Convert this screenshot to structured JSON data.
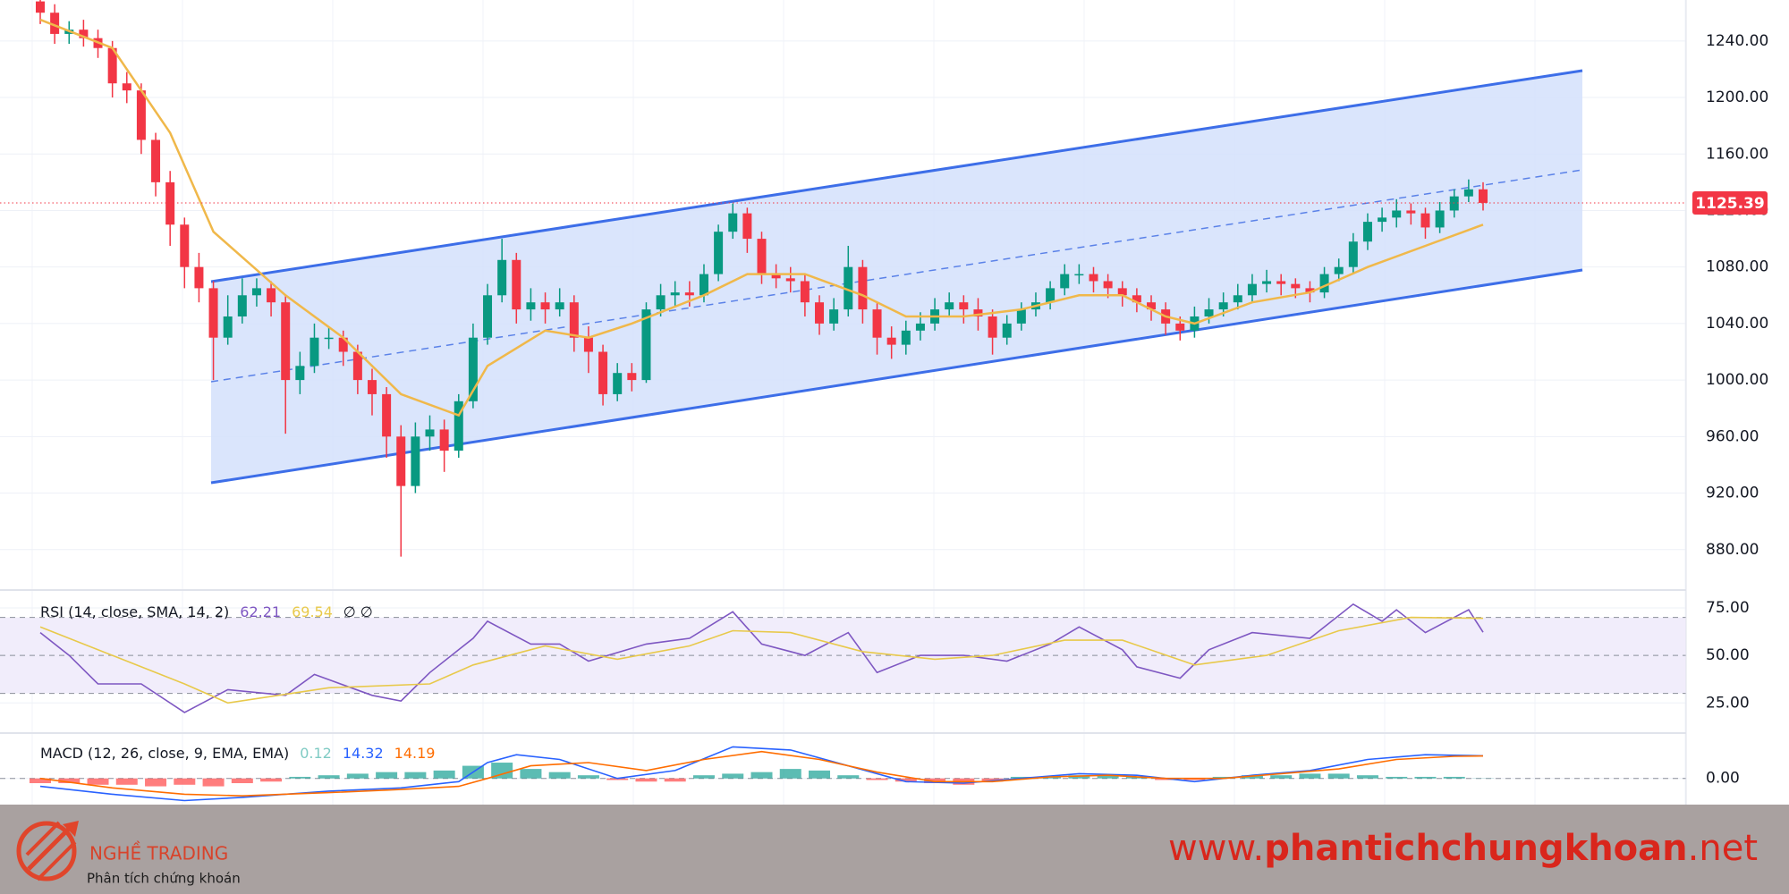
{
  "chart_data": [
    {
      "type": "candlestick",
      "open": [
        1268,
        1260,
        1245,
        1248,
        1242,
        1235,
        1210,
        1205,
        1170,
        1140,
        1110,
        1080,
        1065,
        1030,
        1045,
        1060,
        1065,
        1055,
        1000,
        1010,
        1030,
        1030,
        1020,
        1000,
        990,
        960,
        925,
        960,
        965,
        950,
        985,
        1030,
        1060,
        1085,
        1050,
        1055,
        1050,
        1055,
        1030,
        1020,
        990,
        1005,
        1000,
        1050,
        1060,
        1062,
        1060,
        1075,
        1105,
        1118,
        1100,
        1075,
        1072,
        1070,
        1055,
        1040,
        1050,
        1080,
        1050,
        1030,
        1025,
        1035,
        1040,
        1050,
        1055,
        1050,
        1045,
        1030,
        1040,
        1050,
        1055,
        1065,
        1075,
        1075,
        1070,
        1065,
        1060,
        1055,
        1050,
        1040,
        1035,
        1045,
        1050,
        1055,
        1060,
        1068,
        1070,
        1068,
        1065,
        1062,
        1075,
        1080,
        1098,
        1112,
        1115,
        1120,
        1118,
        1108,
        1120,
        1130,
        1135
      ],
      "high": [
        1272,
        1266,
        1254,
        1255,
        1248,
        1240,
        1218,
        1210,
        1175,
        1148,
        1115,
        1090,
        1070,
        1060,
        1072,
        1072,
        1070,
        1060,
        1020,
        1040,
        1038,
        1035,
        1025,
        1008,
        995,
        968,
        970,
        975,
        972,
        990,
        1040,
        1068,
        1100,
        1090,
        1065,
        1062,
        1065,
        1060,
        1038,
        1025,
        1012,
        1012,
        1055,
        1068,
        1070,
        1070,
        1082,
        1110,
        1125,
        1122,
        1105,
        1082,
        1080,
        1075,
        1060,
        1058,
        1095,
        1085,
        1055,
        1038,
        1042,
        1048,
        1058,
        1062,
        1060,
        1058,
        1050,
        1046,
        1055,
        1062,
        1070,
        1082,
        1082,
        1080,
        1075,
        1070,
        1065,
        1060,
        1055,
        1045,
        1052,
        1058,
        1062,
        1068,
        1075,
        1078,
        1075,
        1072,
        1070,
        1080,
        1086,
        1104,
        1118,
        1122,
        1128,
        1125,
        1122,
        1126,
        1135,
        1142,
        1140
      ],
      "low": [
        1252,
        1238,
        1238,
        1236,
        1228,
        1200,
        1196,
        1160,
        1130,
        1095,
        1065,
        1055,
        1000,
        1025,
        1040,
        1052,
        1045,
        962,
        990,
        1005,
        1022,
        1010,
        990,
        975,
        945,
        875,
        920,
        950,
        935,
        945,
        980,
        1025,
        1055,
        1040,
        1042,
        1040,
        1045,
        1020,
        1005,
        982,
        985,
        992,
        998,
        1045,
        1052,
        1052,
        1055,
        1070,
        1100,
        1090,
        1068,
        1065,
        1062,
        1045,
        1032,
        1035,
        1045,
        1040,
        1018,
        1015,
        1018,
        1028,
        1035,
        1045,
        1040,
        1035,
        1018,
        1025,
        1035,
        1045,
        1050,
        1060,
        1068,
        1062,
        1058,
        1052,
        1048,
        1042,
        1032,
        1028,
        1030,
        1040,
        1045,
        1050,
        1055,
        1062,
        1060,
        1058,
        1055,
        1058,
        1070,
        1075,
        1092,
        1105,
        1108,
        1110,
        1100,
        1104,
        1115,
        1126,
        1120
      ],
      "close": [
        1260,
        1245,
        1248,
        1242,
        1235,
        1210,
        1205,
        1170,
        1140,
        1110,
        1080,
        1065,
        1030,
        1045,
        1060,
        1065,
        1055,
        1000,
        1010,
        1030,
        1030,
        1020,
        1000,
        990,
        960,
        925,
        960,
        965,
        950,
        985,
        1030,
        1060,
        1085,
        1050,
        1055,
        1050,
        1055,
        1030,
        1020,
        990,
        1005,
        1000,
        1050,
        1060,
        1062,
        1060,
        1075,
        1105,
        1118,
        1100,
        1075,
        1072,
        1070,
        1055,
        1040,
        1050,
        1080,
        1050,
        1030,
        1025,
        1035,
        1040,
        1050,
        1055,
        1050,
        1045,
        1030,
        1040,
        1050,
        1055,
        1065,
        1075,
        1075,
        1070,
        1065,
        1060,
        1055,
        1050,
        1040,
        1035,
        1045,
        1050,
        1055,
        1060,
        1068,
        1070,
        1068,
        1065,
        1062,
        1075,
        1080,
        1098,
        1112,
        1115,
        1120,
        1118,
        1108,
        1120,
        1130,
        1135,
        1125.39
      ],
      "up_color": "#089981",
      "down_color": "#f23645",
      "ma": {
        "color": "#f0b84a",
        "x": [
          0,
          5,
          9,
          12,
          17,
          21,
          25,
          29,
          31,
          35,
          38,
          41,
          46,
          49,
          53,
          57,
          60,
          64,
          68,
          72,
          75,
          78,
          80,
          84,
          88,
          92,
          96,
          100
        ],
        "values": [
          1255,
          1235,
          1175,
          1105,
          1060,
          1030,
          990,
          975,
          1010,
          1035,
          1030,
          1040,
          1060,
          1075,
          1075,
          1060,
          1045,
          1045,
          1050,
          1060,
          1060,
          1045,
          1040,
          1055,
          1062,
          1080,
          1095,
          1110
        ]
      },
      "last_price_color": "#f23645",
      "ylim": [
        852,
        1269
      ],
      "yticks": [
        {
          "value": 880,
          "label": "880.00"
        },
        {
          "value": 920,
          "label": "920.00"
        },
        {
          "value": 960,
          "label": "960.00"
        },
        {
          "value": 1000,
          "label": "1000.00"
        },
        {
          "value": 1040,
          "label": "1040.00"
        },
        {
          "value": 1080,
          "label": "1080.00"
        },
        {
          "value": 1120,
          "label": "1120.00"
        },
        {
          "value": 1160,
          "label": "1160.00"
        },
        {
          "value": 1200,
          "label": "1200.00"
        },
        {
          "value": 1240,
          "label": "1240.00"
        }
      ],
      "grid": true
    },
    {
      "type": "line",
      "title": "RSI (14, close, SMA, 14, 2)",
      "extra_label": "∅ ∅",
      "series": [
        {
          "color": "#7e57c2",
          "x": [
            0,
            2,
            4,
            7,
            10,
            13,
            17,
            19,
            23,
            25,
            27,
            30,
            31,
            34,
            36,
            38,
            42,
            45,
            48,
            50,
            53,
            56,
            58,
            61,
            64,
            67,
            70,
            72,
            75,
            76,
            79,
            81,
            84,
            88,
            91,
            93,
            94,
            96,
            99,
            100
          ],
          "values": [
            62,
            50,
            35,
            35,
            20,
            32,
            29,
            40,
            29,
            26,
            41,
            59,
            68,
            56,
            56,
            47,
            56,
            59,
            73,
            56,
            50,
            62,
            41,
            50,
            50,
            47,
            56,
            65,
            53,
            44,
            38,
            53,
            62,
            59,
            77,
            68,
            74,
            62,
            74,
            62.21
          ]
        },
        {
          "color": "#e8c94a",
          "x": [
            0,
            5,
            10,
            13,
            20,
            27,
            30,
            35,
            40,
            45,
            48,
            52,
            57,
            62,
            66,
            71,
            75,
            80,
            85,
            90,
            95,
            100
          ],
          "values": [
            65,
            50,
            35,
            25,
            33,
            35,
            45,
            55,
            48,
            55,
            63,
            62,
            52,
            48,
            50,
            58,
            58,
            45,
            50,
            63,
            70,
            69.54
          ]
        }
      ],
      "band_lines": [
        30,
        50,
        70
      ],
      "band_color": "#f1edfb",
      "ylim": [
        11,
        83
      ],
      "yticks": [
        {
          "value": 25,
          "label": "25.00"
        },
        {
          "value": 50,
          "label": "50.00"
        },
        {
          "value": 75,
          "label": "75.00"
        }
      ]
    },
    {
      "type": "macd",
      "title": "MACD (12, 26, close, 9, EMA, EMA)",
      "histogram": {
        "positive_color": "#26a69a",
        "negative_color": "#ff5252",
        "label_color": "#80cbc4",
        "x": [
          0,
          2,
          4,
          6,
          8,
          10,
          12,
          14,
          16,
          18,
          20,
          22,
          24,
          26,
          28,
          30,
          32,
          34,
          36,
          38,
          40,
          42,
          44,
          46,
          48,
          50,
          52,
          54,
          56,
          58,
          60,
          62,
          64,
          66,
          68,
          70,
          72,
          74,
          76,
          78,
          80,
          82,
          84,
          86,
          88,
          90,
          92,
          94,
          96,
          98,
          100
        ],
        "values": [
          -3,
          -3,
          -4,
          -4,
          -5,
          -4,
          -5,
          -3,
          -2,
          1,
          2,
          3,
          4,
          4,
          5,
          8,
          10,
          6,
          4,
          2,
          -1,
          -2,
          -2,
          2,
          3,
          4,
          6,
          5,
          2,
          -1,
          -2,
          -3,
          -4,
          -2,
          1,
          1,
          2,
          2,
          1,
          -1,
          -1,
          1,
          2,
          2,
          3,
          3,
          2,
          1,
          1,
          1,
          0.12
        ]
      },
      "series": [
        {
          "color": "#2962ff",
          "x": [
            0,
            5,
            10,
            14,
            20,
            25,
            29,
            31,
            33,
            36,
            40,
            44,
            48,
            52,
            56,
            60,
            64,
            68,
            72,
            76,
            80,
            84,
            88,
            92,
            96,
            100
          ],
          "values": [
            -5,
            -10,
            -14,
            -12,
            -8,
            -6,
            -2,
            10,
            15,
            12,
            0,
            5,
            20,
            18,
            8,
            -2,
            -3,
            0,
            3,
            2,
            -2,
            2,
            5,
            12,
            15,
            14.32
          ]
        },
        {
          "color": "#ff6d00",
          "x": [
            0,
            5,
            10,
            14,
            20,
            25,
            29,
            31,
            34,
            38,
            42,
            46,
            50,
            54,
            58,
            62,
            66,
            70,
            74,
            78,
            82,
            86,
            90,
            94,
            98,
            100
          ],
          "values": [
            0,
            -6,
            -10,
            -11,
            -9,
            -7,
            -5,
            0,
            8,
            10,
            5,
            12,
            17,
            12,
            4,
            -2,
            -2,
            1,
            2,
            0,
            0,
            3,
            6,
            12,
            14,
            14.19
          ]
        }
      ],
      "ylim": [
        -16,
        27
      ],
      "yticks": [
        {
          "value": 0,
          "label": "0.00"
        }
      ]
    }
  ],
  "footer": {
    "brand": "NGHỀ TRADING",
    "tagline": "Phân tích chứng khoán",
    "url_prefix": "www.",
    "url_domain": "phantichchungkhoan",
    "url_suffix": ".net"
  }
}
